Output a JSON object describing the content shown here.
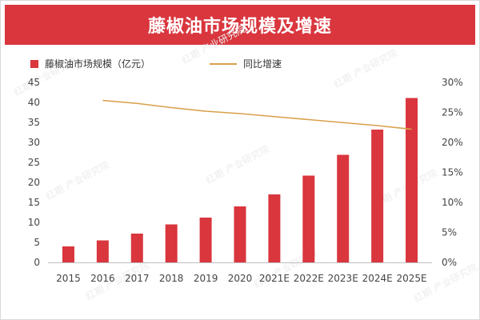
{
  "chart_data": {
    "type": "bar",
    "title": "藤椒油市场规模及增速",
    "categories": [
      "2015",
      "2016",
      "2017",
      "2018",
      "2019",
      "2020",
      "2021E",
      "2022E",
      "2023E",
      "2024E",
      "2025E"
    ],
    "series": [
      {
        "name": "藤椒油市场规模（亿元）",
        "type": "bar",
        "axis": "left",
        "color": "#d9363e",
        "values": [
          4.0,
          5.5,
          7.2,
          9.5,
          11.2,
          14.0,
          17.0,
          21.7,
          26.9,
          33.2,
          41.1
        ]
      },
      {
        "name": "同比增速",
        "type": "line",
        "axis": "right",
        "color": "#d9a04a",
        "values": [
          null,
          27.0,
          26.5,
          25.8,
          25.2,
          24.8,
          24.3,
          23.8,
          23.3,
          22.8,
          22.2
        ]
      }
    ],
    "y_left": {
      "min": 0,
      "max": 45,
      "ticks": [
        "0",
        "5",
        "10",
        "15",
        "20",
        "25",
        "30",
        "35",
        "40",
        "45"
      ]
    },
    "y_right": {
      "min": 0,
      "max": 30,
      "ticks": [
        "0%",
        "5%",
        "10%",
        "15%",
        "20%",
        "25%",
        "30%"
      ]
    },
    "grid": false,
    "legend_position": "top-left",
    "watermark": "红期 产业研究院"
  }
}
